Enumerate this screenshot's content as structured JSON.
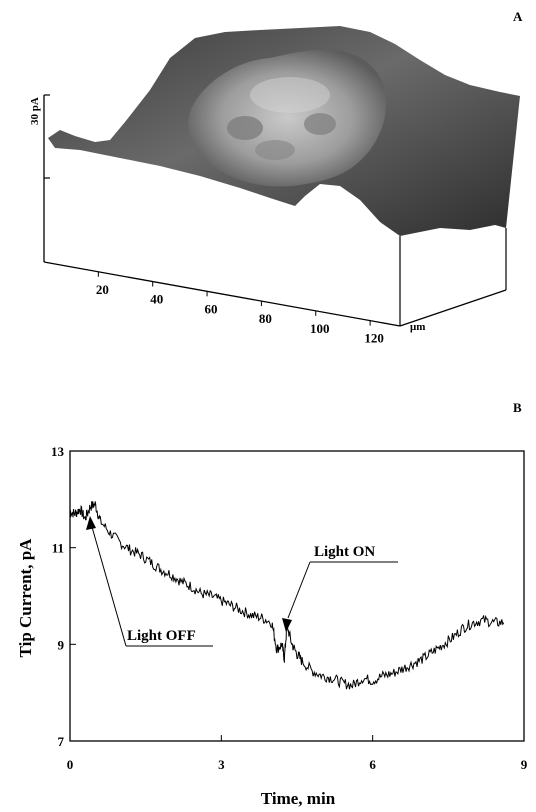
{
  "chart_data": [
    {
      "type": "surface",
      "panel_label": "A",
      "z_scale_label": "30 pA",
      "x_ticks": [
        "20",
        "40",
        "60",
        "80",
        "100",
        "120"
      ],
      "x_unit": "μm"
    },
    {
      "type": "line",
      "panel_label": "B",
      "xlabel": "Time, min",
      "ylabel": "Tip Current, pA",
      "xlim": [
        0,
        9
      ],
      "ylim": [
        7,
        13
      ],
      "x_ticks": [
        "0",
        "3",
        "6",
        "9"
      ],
      "y_ticks": [
        "7",
        "9",
        "11",
        "13"
      ],
      "annotations": [
        {
          "text": "Light OFF",
          "x": 0.45,
          "y": 11.5
        },
        {
          "text": "Light ON",
          "x": 4.25,
          "y": 9.4
        }
      ],
      "series": [
        {
          "x": [
            0.0,
            0.1,
            0.2,
            0.3,
            0.4,
            0.5,
            0.6,
            0.8,
            1.0,
            1.2,
            1.4,
            1.6,
            1.8,
            2.0,
            2.2,
            2.4,
            2.6,
            2.8,
            3.0,
            3.2,
            3.4,
            3.6,
            3.8,
            4.0,
            4.1,
            4.2,
            4.25,
            4.3,
            4.4,
            4.5,
            4.6,
            4.8,
            5.0,
            5.2,
            5.4,
            5.6,
            5.8,
            6.0,
            6.2,
            6.4,
            6.6,
            6.8,
            7.0,
            7.2,
            7.4,
            7.6,
            7.8,
            8.0,
            8.2,
            8.4,
            8.6
          ],
          "y": [
            11.75,
            11.7,
            11.8,
            11.6,
            11.85,
            11.9,
            11.55,
            11.3,
            11.1,
            10.95,
            10.85,
            10.7,
            10.55,
            10.45,
            10.3,
            10.2,
            10.05,
            10.0,
            9.9,
            9.8,
            9.7,
            9.6,
            9.55,
            9.45,
            8.9,
            9.0,
            8.7,
            9.4,
            9.0,
            8.8,
            8.65,
            8.45,
            8.35,
            8.3,
            8.2,
            8.15,
            8.3,
            8.25,
            8.35,
            8.4,
            8.5,
            8.6,
            8.7,
            8.85,
            9.0,
            9.15,
            9.35,
            9.45,
            9.5,
            9.45,
            9.45
          ]
        }
      ]
    }
  ]
}
